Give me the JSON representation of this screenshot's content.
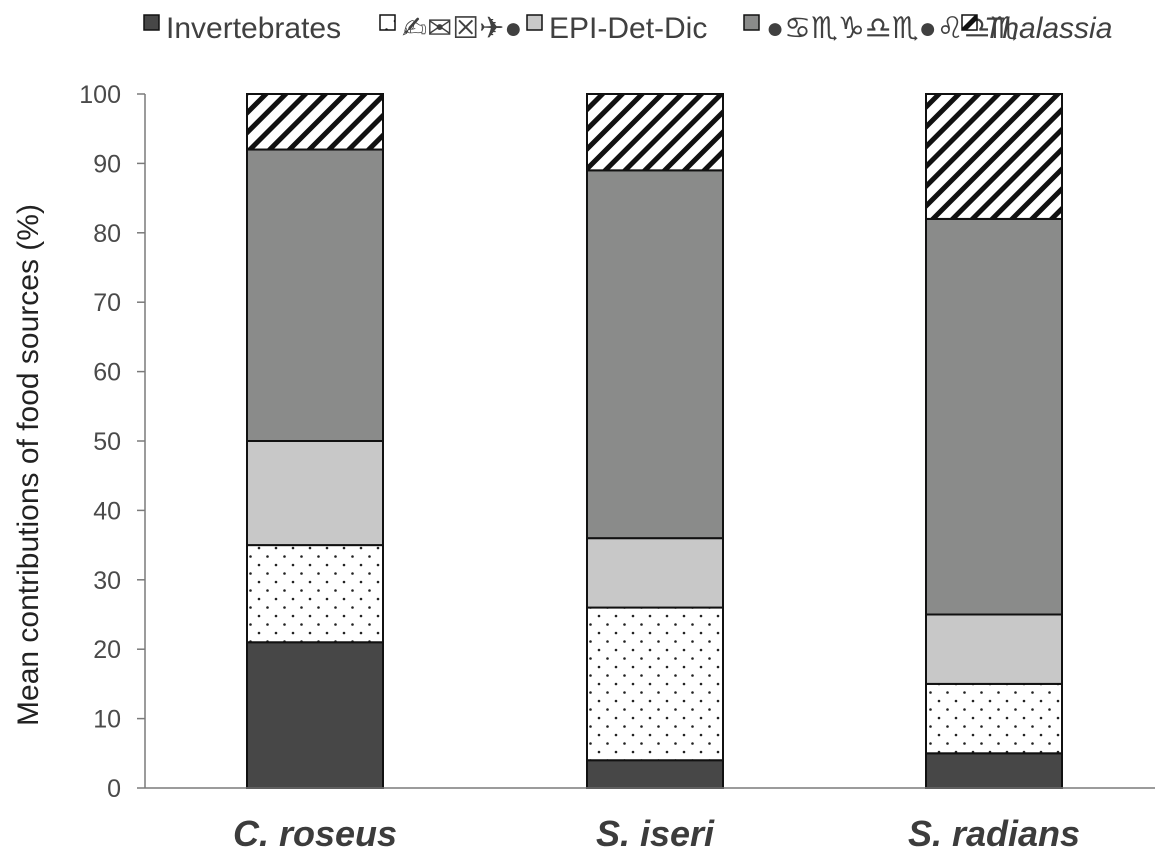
{
  "chart_data": {
    "type": "bar",
    "stacked": true,
    "title": "",
    "xlabel": "",
    "ylabel": "Mean contributions of food sources  (%)",
    "ylim": [
      0,
      100
    ],
    "yticks": [
      0,
      10,
      20,
      30,
      40,
      50,
      60,
      70,
      80,
      90,
      100
    ],
    "grid": false,
    "legend_position": "top",
    "categories": [
      "C. roseus",
      "S. iseri",
      "S. radians"
    ],
    "series": [
      {
        "name": "Invertebrates",
        "values": [
          21,
          4,
          5
        ],
        "color": "#474747",
        "pattern": "solid"
      },
      {
        "name": "✍︎✉︎☒︎✈︎●︎",
        "values": [
          14,
          22,
          10
        ],
        "color": "#ffffff",
        "pattern": "dots"
      },
      {
        "name": "EPI-Det-Dic",
        "values": [
          15,
          10,
          10
        ],
        "color": "#c8c8c8",
        "pattern": "solid"
      },
      {
        "name": "●︎♋︎♏︎♑︎♎︎♏︎●︎♌︎♎︎♏︎",
        "values": [
          42,
          53,
          57
        ],
        "color": "#8a8b8a",
        "pattern": "solid"
      },
      {
        "name": "Thalassia",
        "values": [
          8,
          11,
          18
        ],
        "color": "#ffffff",
        "pattern": "hatch",
        "italic": true
      }
    ]
  }
}
